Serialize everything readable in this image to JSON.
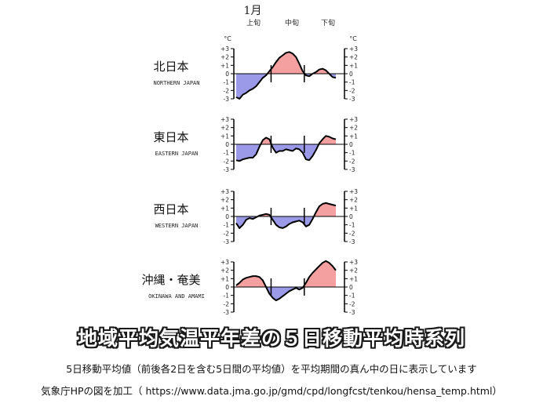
{
  "header": {
    "month": "1月",
    "periods": [
      "上旬",
      "中旬",
      "下旬"
    ],
    "unit_left": "°C",
    "unit_right": "°C"
  },
  "caption": {
    "title": "地域平均気温平年差の５日移動平均時系列",
    "note": "5日移動平均値（前後各2日を含む5日間の平均値）を平均期間の真ん中の日に表示しています",
    "source": "気象庁HPの図を加工（ https://www.data.jma.go.jp/gmd/cpd/longfcst/tenkou/hensa_temp.html）"
  },
  "colors": {
    "positive": "#f4a0a0",
    "negative": "#9a9ae8",
    "line": "#000000"
  },
  "chart_data": [
    {
      "type": "area",
      "region": "北日本",
      "region_en": "NORTHERN JAPAN",
      "x": [
        1,
        2,
        3,
        4,
        5,
        6,
        7,
        8,
        9,
        10,
        11,
        12,
        13,
        14,
        15,
        16,
        17,
        18,
        19,
        20,
        21,
        22,
        23,
        24,
        25,
        26,
        27,
        28,
        29,
        30,
        31
      ],
      "values": [
        -2.8,
        -3.0,
        -2.5,
        -2.3,
        -2.0,
        -1.8,
        -1.5,
        -1.0,
        -0.5,
        -0.2,
        0.3,
        0.8,
        1.4,
        1.9,
        2.2,
        2.5,
        2.6,
        2.4,
        2.0,
        1.2,
        0.3,
        -0.2,
        -0.3,
        0.0,
        0.2,
        0.5,
        0.6,
        0.4,
        0.0,
        -0.4,
        -0.5
      ],
      "yticks": [
        "+3",
        "+2",
        "+1",
        "0",
        "-1",
        "-2",
        "-3"
      ],
      "ylim": [
        -3,
        3
      ],
      "xlim": [
        1,
        31
      ]
    },
    {
      "type": "area",
      "region": "東日本",
      "region_en": "EASTERN JAPAN",
      "x": [
        1,
        2,
        3,
        4,
        5,
        6,
        7,
        8,
        9,
        10,
        11,
        12,
        13,
        14,
        15,
        16,
        17,
        18,
        19,
        20,
        21,
        22,
        23,
        24,
        25,
        26,
        27,
        28,
        29,
        30,
        31
      ],
      "values": [
        -1.9,
        -2.0,
        -1.8,
        -1.7,
        -1.6,
        -1.6,
        -1.2,
        -0.3,
        0.5,
        0.8,
        0.6,
        -0.4,
        -1.0,
        -0.8,
        -0.8,
        -0.6,
        -0.7,
        -0.8,
        -0.5,
        -0.6,
        -1.0,
        -1.8,
        -1.9,
        -1.4,
        -0.7,
        0.1,
        0.6,
        1.0,
        0.9,
        0.7,
        0.6
      ],
      "yticks": [
        "+3",
        "+2",
        "+1",
        "0",
        "-1",
        "-2",
        "-3"
      ],
      "ylim": [
        -3,
        3
      ],
      "xlim": [
        1,
        31
      ]
    },
    {
      "type": "area",
      "region": "西日本",
      "region_en": "WESTERN JAPAN",
      "x": [
        1,
        2,
        3,
        4,
        5,
        6,
        7,
        8,
        9,
        10,
        11,
        12,
        13,
        14,
        15,
        16,
        17,
        18,
        19,
        20,
        21,
        22,
        23,
        24,
        25,
        26,
        27,
        28,
        29,
        30,
        31
      ],
      "values": [
        -0.8,
        -1.4,
        -1.0,
        -0.4,
        -0.2,
        -0.3,
        -0.1,
        0.1,
        0.2,
        0.3,
        0.2,
        -0.4,
        -1.0,
        -1.3,
        -1.4,
        -1.2,
        -0.9,
        -0.7,
        -0.6,
        -0.5,
        -0.7,
        -1.2,
        -1.0,
        -0.3,
        0.5,
        1.2,
        1.5,
        1.6,
        1.5,
        1.4,
        1.3
      ],
      "yticks": [
        "+3",
        "+2",
        "+1",
        "0",
        "-1",
        "-2",
        "-3"
      ],
      "ylim": [
        -3,
        3
      ],
      "xlim": [
        1,
        31
      ]
    },
    {
      "type": "area",
      "region": "沖縄・奄美",
      "region_en": "OKINAWA AND AMAMI",
      "x": [
        1,
        2,
        3,
        4,
        5,
        6,
        7,
        8,
        9,
        10,
        11,
        12,
        13,
        14,
        15,
        16,
        17,
        18,
        19,
        20,
        21,
        22,
        23,
        24,
        25,
        26,
        27,
        28,
        29,
        30,
        31
      ],
      "values": [
        0.2,
        0.5,
        0.9,
        1.1,
        1.2,
        1.3,
        1.3,
        1.2,
        0.8,
        0.0,
        -0.8,
        -1.3,
        -1.6,
        -1.4,
        -1.1,
        -0.8,
        -0.5,
        -0.3,
        -0.1,
        -0.3,
        -0.1,
        0.5,
        1.2,
        1.7,
        2.1,
        2.5,
        2.9,
        3.1,
        2.9,
        2.5,
        2.0
      ],
      "yticks": [
        "+3",
        "+2",
        "+1",
        "0",
        "-1",
        "-2",
        "-3"
      ],
      "ylim": [
        -3,
        3
      ],
      "xlim": [
        1,
        31
      ]
    }
  ]
}
